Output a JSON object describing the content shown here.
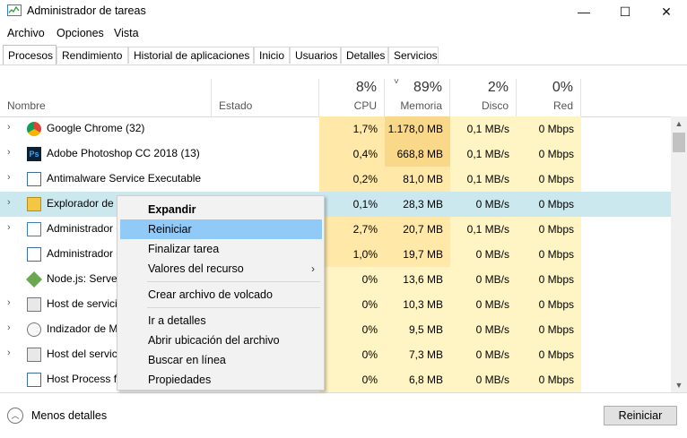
{
  "window": {
    "title": "Administrador de tareas",
    "controls": {
      "minimize": "—",
      "maximize": "☐",
      "close": "✕"
    }
  },
  "menu": [
    "Archivo",
    "Opciones",
    "Vista"
  ],
  "tabs": [
    {
      "label": "Procesos",
      "active": true
    },
    {
      "label": "Rendimiento"
    },
    {
      "label": "Historial de aplicaciones"
    },
    {
      "label": "Inicio"
    },
    {
      "label": "Usuarios"
    },
    {
      "label": "Detalles"
    },
    {
      "label": "Servicios"
    }
  ],
  "columns": {
    "name": "Nombre",
    "status": "Estado",
    "cpu": {
      "pct": "8%",
      "label": "CPU"
    },
    "memory": {
      "pct": "89%",
      "label": "Memoria"
    },
    "disk": {
      "pct": "2%",
      "label": "Disco"
    },
    "network": {
      "pct": "0%",
      "label": "Red"
    }
  },
  "processes": [
    {
      "name": "Google Chrome (32)",
      "cpu": "1,7%",
      "mem": "1.178,0 MB",
      "disk": "0,1 MB/s",
      "net": "0 Mbps",
      "icon": "chrome-icon",
      "expandable": true
    },
    {
      "name": "Adobe Photoshop CC 2018 (13)",
      "cpu": "0,4%",
      "mem": "668,8 MB",
      "disk": "0,1 MB/s",
      "net": "0 Mbps",
      "icon": "photoshop-icon",
      "expandable": true
    },
    {
      "name": "Antimalware Service Executable",
      "cpu": "0,2%",
      "mem": "81,0 MB",
      "disk": "0,1 MB/s",
      "net": "0 Mbps",
      "icon": "service-icon",
      "expandable": true
    },
    {
      "name": "Explorador de Windows",
      "cpu": "0,1%",
      "mem": "28,3 MB",
      "disk": "0 MB/s",
      "net": "0 Mbps",
      "icon": "explorer-icon",
      "expandable": true,
      "selected": true
    },
    {
      "name": "Administrador de tareas",
      "cpu": "2,7%",
      "mem": "20,7 MB",
      "disk": "0,1 MB/s",
      "net": "0 Mbps",
      "icon": "taskmgr-icon",
      "expandable": true
    },
    {
      "name": "Administrador de ventanas",
      "cpu": "1,0%",
      "mem": "19,7 MB",
      "disk": "0 MB/s",
      "net": "0 Mbps",
      "icon": "window-icon",
      "expandable": false
    },
    {
      "name": "Node.js: Server-side JavaScript",
      "cpu": "0%",
      "mem": "13,6 MB",
      "disk": "0 MB/s",
      "net": "0 Mbps",
      "icon": "nodejs-icon",
      "expandable": false
    },
    {
      "name": "Host de servicio",
      "cpu": "0%",
      "mem": "10,3 MB",
      "disk": "0 MB/s",
      "net": "0 Mbps",
      "icon": "gear-icon",
      "expandable": true
    },
    {
      "name": "Indizador de Microsoft Windows Search",
      "cpu": "0%",
      "mem": "9,5 MB",
      "disk": "0 MB/s",
      "net": "0 Mbps",
      "icon": "search-indexer-icon",
      "expandable": true
    },
    {
      "name": "Host del servicio",
      "cpu": "0%",
      "mem": "7,3 MB",
      "disk": "0 MB/s",
      "net": "0 Mbps",
      "icon": "gear-icon",
      "expandable": true
    },
    {
      "name": "Host Process for Windows Tasks",
      "cpu": "0%",
      "mem": "6,8 MB",
      "disk": "0 MB/s",
      "net": "0 Mbps",
      "icon": "service-icon",
      "expandable": false
    }
  ],
  "context_menu": {
    "items": [
      {
        "label": "Expandir",
        "bold": true
      },
      {
        "label": "Reiniciar",
        "highlighted": true
      },
      {
        "label": "Finalizar tarea"
      },
      {
        "label": "Valores del recurso",
        "submenu": "›"
      },
      {
        "separator": true
      },
      {
        "label": "Crear archivo de volcado"
      },
      {
        "separator": true
      },
      {
        "label": "Ir a detalles"
      },
      {
        "label": "Abrir ubicación del archivo"
      },
      {
        "label": "Buscar en línea"
      },
      {
        "label": "Propiedades"
      }
    ]
  },
  "footer": {
    "less_details": "Menos detalles",
    "action_button": "Reiniciar"
  },
  "colors": {
    "heat_low": "#fff4c4",
    "heat_mid": "#ffe8a8",
    "heat_high": "#f9d88a",
    "selection": "#cce8ef",
    "menu_highlight": "#91c9f7"
  }
}
